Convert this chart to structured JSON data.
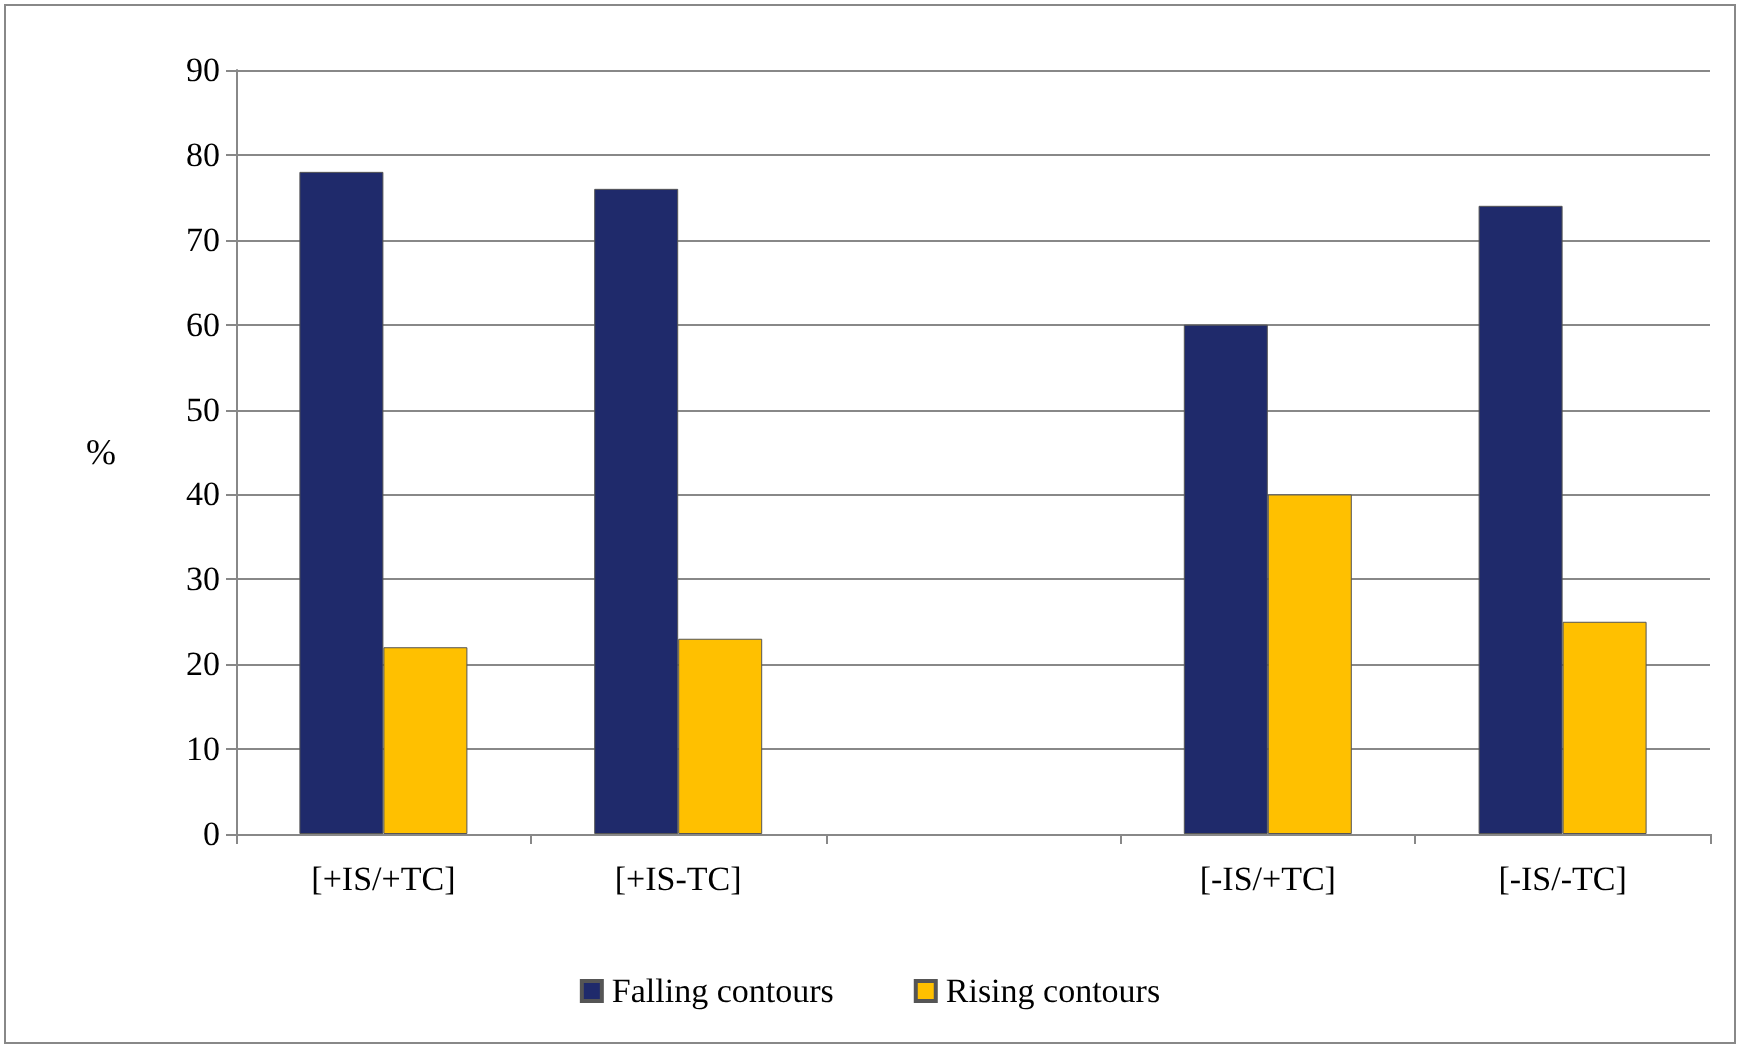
{
  "chart_data": {
    "type": "bar",
    "ylabel": "%",
    "categories": [
      "[+IS/+TC]",
      "[+IS-TC]",
      null,
      "[-IS/+TC]",
      "[-IS/-TC]"
    ],
    "series": [
      {
        "name": "Falling contours",
        "color": "#1f2a6b",
        "values": [
          78,
          76,
          null,
          60,
          74
        ]
      },
      {
        "name": "Rising contours",
        "color": "#ffc000",
        "values": [
          22,
          23,
          null,
          40,
          25
        ]
      }
    ],
    "ylim": [
      0,
      90
    ],
    "yticks": [
      0,
      10,
      20,
      30,
      40,
      50,
      60,
      70,
      80,
      90
    ],
    "grid": "y",
    "legend": "bottom"
  }
}
